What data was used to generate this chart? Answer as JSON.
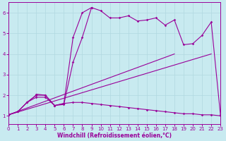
{
  "xlabel": "Windchill (Refroidissement éolien,°C)",
  "bg_color": "#c8eaf0",
  "line_color": "#990099",
  "grid_color": "#b0d8e0",
  "xlim": [
    0,
    23
  ],
  "ylim": [
    0.6,
    6.5
  ],
  "xticks": [
    0,
    1,
    2,
    3,
    4,
    5,
    6,
    7,
    8,
    9,
    10,
    11,
    12,
    13,
    14,
    15,
    16,
    17,
    18,
    19,
    20,
    21,
    22,
    23
  ],
  "yticks": [
    1,
    2,
    3,
    4,
    5,
    6
  ],
  "series": [
    {
      "x": [
        0,
        1,
        2,
        3,
        4,
        5,
        6,
        7,
        8,
        9,
        10,
        11,
        12,
        13,
        14,
        15,
        16,
        17,
        18,
        19,
        20,
        21,
        22,
        23
      ],
      "y": [
        1.05,
        1.2,
        1.65,
        2.0,
        2.0,
        1.5,
        1.55,
        3.6,
        4.8,
        6.25,
        6.1,
        5.75,
        5.75,
        5.85,
        5.6,
        5.65,
        5.75,
        5.4,
        5.65,
        4.45,
        4.5,
        4.9,
        5.55,
        1.05
      ],
      "marker": true
    },
    {
      "x": [
        0,
        1,
        2,
        3,
        3,
        4,
        5,
        6,
        7,
        8,
        9
      ],
      "y": [
        1.05,
        1.2,
        1.65,
        2.0,
        2.05,
        2.0,
        1.5,
        1.6,
        4.8,
        6.0,
        6.25
      ],
      "marker": true
    },
    {
      "x": [
        0,
        18
      ],
      "y": [
        1.05,
        4.0
      ],
      "marker": false
    },
    {
      "x": [
        0,
        22
      ],
      "y": [
        1.05,
        4.0
      ],
      "marker": false
    },
    {
      "x": [
        0,
        1,
        2,
        3,
        4,
        5,
        6,
        7,
        8,
        9,
        10,
        11,
        12,
        13,
        14,
        15,
        16,
        17,
        18,
        19,
        20,
        21,
        22,
        23
      ],
      "y": [
        1.05,
        1.2,
        1.65,
        1.9,
        1.9,
        1.5,
        1.6,
        1.65,
        1.65,
        1.6,
        1.55,
        1.5,
        1.45,
        1.4,
        1.35,
        1.3,
        1.25,
        1.2,
        1.15,
        1.1,
        1.1,
        1.05,
        1.05,
        1.0
      ],
      "marker": true
    }
  ]
}
